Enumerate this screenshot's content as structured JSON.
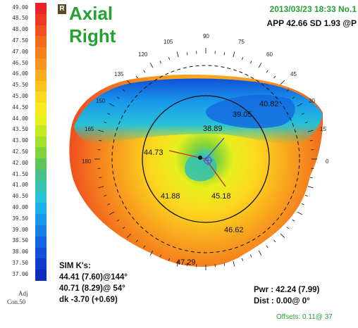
{
  "legend": {
    "items": [
      {
        "value": "49.00",
        "color": "#e8242a"
      },
      {
        "value": "48.50",
        "color": "#ec3a22"
      },
      {
        "value": "48.00",
        "color": "#ef5120"
      },
      {
        "value": "47.50",
        "color": "#f26a1e"
      },
      {
        "value": "47.00",
        "color": "#f5801e"
      },
      {
        "value": "46.50",
        "color": "#f7951e"
      },
      {
        "value": "46.00",
        "color": "#f9ab1e"
      },
      {
        "value": "45.50",
        "color": "#fbc21e"
      },
      {
        "value": "45.00",
        "color": "#fcd81e"
      },
      {
        "value": "44.50",
        "color": "#fdea1e"
      },
      {
        "value": "44.00",
        "color": "#e8f01e"
      },
      {
        "value": "43.50",
        "color": "#c6ea22"
      },
      {
        "value": "43.00",
        "color": "#a2e02a"
      },
      {
        "value": "42.50",
        "color": "#7fd33c"
      },
      {
        "value": "42.00",
        "color": "#5fc65a"
      },
      {
        "value": "41.50",
        "color": "#48c28a"
      },
      {
        "value": "41.00",
        "color": "#35c2b2"
      },
      {
        "value": "40.50",
        "color": "#27c2d8"
      },
      {
        "value": "40.00",
        "color": "#1cb2ec"
      },
      {
        "value": "39.50",
        "color": "#1898ea"
      },
      {
        "value": "39.00",
        "color": "#157fe6"
      },
      {
        "value": "38.50",
        "color": "#1366e0"
      },
      {
        "value": "38.00",
        "color": "#1150d8"
      },
      {
        "value": "37.50",
        "color": "#0f3ccc"
      },
      {
        "value": "37.00",
        "color": "#0e2cbc"
      }
    ],
    "foot1": "Adj",
    "foot2": "Con.50"
  },
  "header": {
    "badge": "R",
    "title_line1": "Axial",
    "title_line2": "Right",
    "date": "2013/03/23  18:33  No.1",
    "app": "APP 42.66  SD 1.93  @P"
  },
  "map": {
    "angles": [
      "90",
      "105",
      "75",
      "120",
      "60",
      "135",
      "45",
      "150",
      "30",
      "165",
      "15",
      "180",
      "0"
    ],
    "values": {
      "v3882": "40.82",
      "v3905": "39.05",
      "v3889": "38.89",
      "v4473": "44.73",
      "v4188": "41.88",
      "v4518": "45.18",
      "v4662": "46.62",
      "v4729": "47.29"
    }
  },
  "sim": {
    "title": "SIM K's:",
    "line1": "44.41 (7.60)@144°",
    "line2": "40.71 (8.29)@ 54°",
    "line3": "dk -3.70 (+0.69)"
  },
  "pwr": {
    "line1": "Pwr :  42.24 (7.99)",
    "line2": "Dist :  0.00@  0°"
  },
  "offsets": "Offsets: 0.11@ 37"
}
